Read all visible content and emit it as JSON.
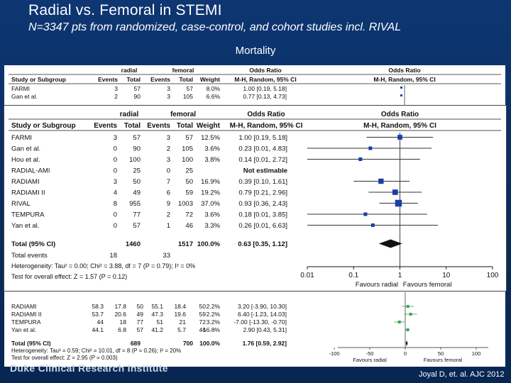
{
  "slide": {
    "title": "Radial vs. Femoral in STEMI",
    "subtitle": "N=3347 pts from randomized, case-control, and cohort studies incl. RIVAL",
    "section_label": "Mortality",
    "footer_logo": "Duke Clinical Research Institute",
    "citation": "Joyal D, et. al. AJC 2012"
  },
  "chart_data": [
    {
      "type": "forest",
      "name": "Mortality",
      "group_headers": {
        "radial": "radial",
        "femoral": "femoral",
        "effect": "Odds Ratio",
        "plot": "Odds Ratio"
      },
      "columns": [
        "Study or Subgroup",
        "Events",
        "Total",
        "Events",
        "Total",
        "Weight",
        "M-H, Random, 95% CI",
        "M-H, Random, 95% CI"
      ],
      "studies": [
        {
          "study": "FARMI",
          "r_events": "3",
          "r_total": "57",
          "f_events": "3",
          "f_total": "57",
          "weight": "12.5%",
          "ci_text": "1.00 [0.19, 5.18]",
          "or": 1.0,
          "low": 0.19,
          "high": 5.18
        },
        {
          "study": "Gan et al.",
          "r_events": "0",
          "r_total": "90",
          "f_events": "2",
          "f_total": "105",
          "weight": "3.6%",
          "ci_text": "0.23 [0.01, 4.83]",
          "or": 0.23,
          "low": 0.01,
          "high": 4.83
        },
        {
          "study": "Hou et al.",
          "r_events": "0",
          "r_total": "100",
          "f_events": "3",
          "f_total": "100",
          "weight": "3.8%",
          "ci_text": "0.14 [0.01, 2.72]",
          "or": 0.14,
          "low": 0.01,
          "high": 2.72
        },
        {
          "study": "RADIAL-AMI",
          "r_events": "0",
          "r_total": "25",
          "f_events": "0",
          "f_total": "25",
          "weight": "",
          "ci_text": "Not estimable",
          "or": null,
          "low": null,
          "high": null
        },
        {
          "study": "RADIAMI",
          "r_events": "3",
          "r_total": "50",
          "f_events": "7",
          "f_total": "50",
          "weight": "16.9%",
          "ci_text": "0.39 [0.10, 1.61]",
          "or": 0.39,
          "low": 0.1,
          "high": 1.61
        },
        {
          "study": "RADIAMI II",
          "r_events": "4",
          "r_total": "49",
          "f_events": "6",
          "f_total": "59",
          "weight": "19.2%",
          "ci_text": "0.79 [0.21, 2.96]",
          "or": 0.79,
          "low": 0.21,
          "high": 2.96
        },
        {
          "study": "RIVAL",
          "r_events": "8",
          "r_total": "955",
          "f_events": "9",
          "f_total": "1003",
          "weight": "37.0%",
          "ci_text": "0.93 [0.36, 2.43]",
          "or": 0.93,
          "low": 0.36,
          "high": 2.43
        },
        {
          "study": "TEMPURA",
          "r_events": "0",
          "r_total": "77",
          "f_events": "2",
          "f_total": "72",
          "weight": "3.6%",
          "ci_text": "0.18 [0.01, 3.85]",
          "or": 0.18,
          "low": 0.01,
          "high": 3.85
        },
        {
          "study": "Yan et al.",
          "r_events": "0",
          "r_total": "57",
          "f_events": "1",
          "f_total": "46",
          "weight": "3.3%",
          "ci_text": "0.26 [0.01, 6.63]",
          "or": 0.26,
          "low": 0.01,
          "high": 6.63
        }
      ],
      "total": {
        "label": "Total (95% CI)",
        "r_total": "1460",
        "f_total": "1517",
        "weight": "100.0%",
        "ci_text": "0.63 [0.35, 1.12]",
        "or": 0.63,
        "low": 0.35,
        "high": 1.12
      },
      "total_events": {
        "label": "Total events",
        "radial": "18",
        "femoral": "33"
      },
      "heterogeneity": "Heterogeneity: Tau² = 0.00; Chi² = 3.88, df = 7 (P = 0.79); I² = 0%",
      "overall_effect": "Test for overall effect: Z = 1.57 (P = 0.12)",
      "x_scale": "log",
      "x_ticks": [
        0.01,
        0.1,
        1,
        10,
        100
      ],
      "x_tick_labels": [
        "0.01",
        "0.1",
        "1",
        "10",
        "100"
      ],
      "favours_left": "Favours radial",
      "favours_right": "Favours femoral"
    },
    {
      "type": "forest",
      "name": "Background (partially hidden)",
      "group_headers": {
        "radial": "radial",
        "femoral": "femoral",
        "effect": "Odds Ratio",
        "plot": "Odds Ratio"
      },
      "columns": [
        "Study or Subgroup",
        "Events",
        "Total",
        "Events",
        "Total",
        "Weight",
        "M-H, Random, 95% CI",
        "M-H, Random, 95% CI"
      ],
      "studies": [
        {
          "study": "FARMI",
          "r_events": "3",
          "r_total": "57",
          "f_events": "3",
          "f_total": "57",
          "weight": "8.0%",
          "ci_text": "1.00 [0.19, 5.18]",
          "or": 1.0,
          "low": 0.19,
          "high": 5.18
        },
        {
          "study": "Gan et al.",
          "r_events": "2",
          "r_total": "90",
          "f_events": "3",
          "f_total": "105",
          "weight": "6.6%",
          "ci_text": "0.77 [0.13, 4.73]",
          "or": 0.77,
          "low": 0.13,
          "high": 4.73
        }
      ],
      "lower_studies": [
        {
          "study": "RADIAMI",
          "c1": "58.3",
          "c2": "17.8",
          "c3": "50",
          "c4": "55.1",
          "c5": "18.4",
          "c6": "50",
          "weight": "2.2%",
          "ci_text": "3.20 [-3.90, 10.30]",
          "est": 3.2,
          "low": -3.9,
          "high": 10.3
        },
        {
          "study": "RADIAMI II",
          "c1": "53.7",
          "c2": "20.6",
          "c3": "49",
          "c4": "47.3",
          "c5": "19.6",
          "c6": "59",
          "weight": "2.2%",
          "ci_text": "6.40 [-1.23, 14.03]",
          "est": 6.4,
          "low": -1.23,
          "high": 14.03
        },
        {
          "study": "TEMPURA",
          "c1": "44",
          "c2": "18",
          "c3": "77",
          "c4": "51",
          "c5": "21",
          "c6": "72",
          "weight": "3.2%",
          "ci_text": "-7.00 [-13.30, -0.70]",
          "est": -7.0,
          "low": -13.3,
          "high": -0.7
        },
        {
          "study": "Yan et al.",
          "c1": "44.1",
          "c2": "6.8",
          "c3": "57",
          "c4": "41.2",
          "c5": "5.7",
          "c6": "46",
          "weight": "16.8%",
          "ci_text": "2.90 [0.43, 5.31]",
          "est": 2.9,
          "low": 0.43,
          "high": 5.31
        }
      ],
      "total": {
        "label": "Total (95% CI)",
        "r_total": "689",
        "f_total": "700",
        "weight": "100.0%",
        "ci_text": "1.76 [0.59, 2.92]",
        "est": 1.76,
        "low": 0.59,
        "high": 2.92
      },
      "heterogeneity": "Heterogeneity: Tau² = 0.59; Chi² = 10.01, df = 8 (P = 0.26); I² = 20%",
      "overall_effect": "Test for overall effect: Z = 2.95 (P = 0.003)",
      "x_ticks": [
        -100,
        -50,
        0,
        50,
        100
      ],
      "x_tick_labels": [
        "-100",
        "-50",
        "0",
        "50",
        "100"
      ],
      "favours_left": "Favours radial",
      "favours_right": "Favours femoral"
    }
  ]
}
